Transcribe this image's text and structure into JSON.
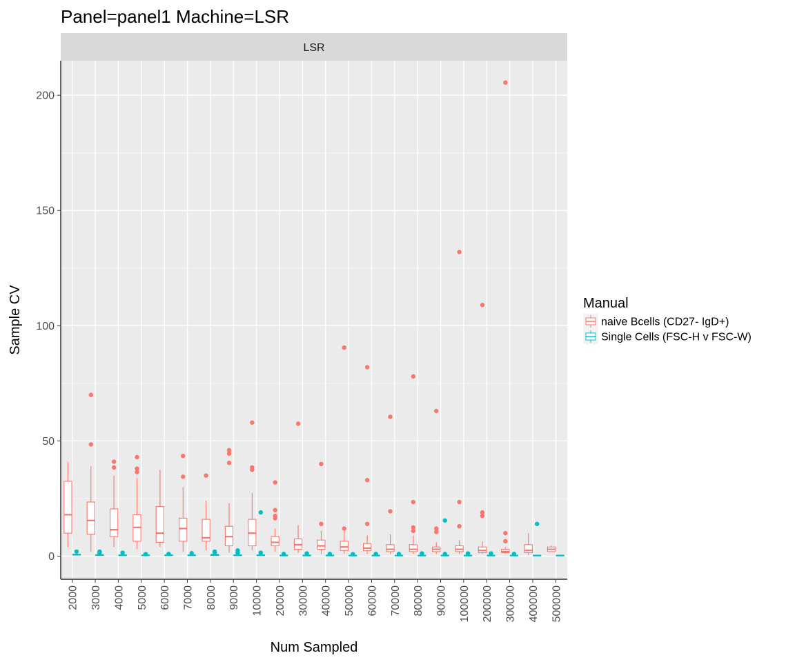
{
  "chart_data": {
    "type": "box",
    "title": "Panel=panel1 Machine=LSR",
    "facet_label": "LSR",
    "xlabel": "Num Sampled",
    "ylabel": "Sample CV",
    "ylim": [
      -10,
      215
    ],
    "yticks": [
      0,
      50,
      100,
      150,
      200
    ],
    "grid": true,
    "legend": {
      "title": "Manual",
      "position": "right"
    },
    "categories": [
      "2000",
      "3000",
      "4000",
      "5000",
      "6000",
      "7000",
      "8000",
      "9000",
      "10000",
      "20000",
      "30000",
      "40000",
      "50000",
      "60000",
      "70000",
      "80000",
      "90000",
      "100000",
      "200000",
      "300000",
      "400000",
      "500000"
    ],
    "series": [
      {
        "name": "naive Bcells (CD27- IgD+)",
        "color": "#F8766D",
        "boxes": [
          {
            "min": 4,
            "q1": 10,
            "median": 18,
            "q3": 32.5,
            "max": 41,
            "outliers": []
          },
          {
            "min": 2,
            "q1": 9.5,
            "median": 15.5,
            "q3": 23.5,
            "max": 39,
            "outliers": [
              48.5,
              70
            ]
          },
          {
            "min": 4,
            "q1": 8.5,
            "median": 11.5,
            "q3": 20.5,
            "max": 35,
            "outliers": [
              38.5,
              41
            ]
          },
          {
            "min": 3,
            "q1": 6.5,
            "median": 12.5,
            "q3": 18,
            "max": 34,
            "outliers": [
              36.5,
              38,
              43
            ]
          },
          {
            "min": 4,
            "q1": 6,
            "median": 10,
            "q3": 21.5,
            "max": 37.5,
            "outliers": []
          },
          {
            "min": 2,
            "q1": 6.5,
            "median": 12,
            "q3": 16.5,
            "max": 30,
            "outliers": [
              34.5,
              43.5
            ]
          },
          {
            "min": 2.5,
            "q1": 6.5,
            "median": 8,
            "q3": 16,
            "max": 24,
            "outliers": [
              35
            ]
          },
          {
            "min": 1.5,
            "q1": 4.5,
            "median": 8.5,
            "q3": 13,
            "max": 23,
            "outliers": [
              40.5,
              44.5,
              46
            ]
          },
          {
            "min": 2.5,
            "q1": 4.5,
            "median": 10,
            "q3": 16,
            "max": 27.5,
            "outliers": [
              37.5,
              38.5,
              58
            ]
          },
          {
            "min": 2,
            "q1": 4.5,
            "median": 6,
            "q3": 8.5,
            "max": 12,
            "outliers": [
              16.5,
              17.5,
              20,
              32
            ]
          },
          {
            "min": 1.5,
            "q1": 3,
            "median": 5,
            "q3": 7.5,
            "max": 13.5,
            "outliers": [
              57.5
            ]
          },
          {
            "min": 1,
            "q1": 3,
            "median": 4.5,
            "q3": 7,
            "max": 11,
            "outliers": [
              14,
              40
            ]
          },
          {
            "min": 1,
            "q1": 2.5,
            "median": 4,
            "q3": 6.5,
            "max": 11,
            "outliers": [
              12,
              90.5
            ]
          },
          {
            "min": 1,
            "q1": 2.5,
            "median": 3.5,
            "q3": 5.5,
            "max": 9,
            "outliers": [
              14,
              33,
              82
            ]
          },
          {
            "min": 1,
            "q1": 2,
            "median": 3,
            "q3": 5,
            "max": 9.5,
            "outliers": [
              19.5,
              60.5
            ]
          },
          {
            "min": 1,
            "q1": 2,
            "median": 3,
            "q3": 5,
            "max": 9,
            "outliers": [
              11,
              12.5,
              23.5,
              78
            ]
          },
          {
            "min": 1,
            "q1": 2,
            "median": 3,
            "q3": 4,
            "max": 6,
            "outliers": [
              10.5,
              12,
              63
            ]
          },
          {
            "min": 1,
            "q1": 2,
            "median": 3,
            "q3": 4.5,
            "max": 7,
            "outliers": [
              13,
              23.5,
              132
            ]
          },
          {
            "min": 1,
            "q1": 1.5,
            "median": 2.5,
            "q3": 4,
            "max": 6.5,
            "outliers": [
              17.5,
              19,
              109
            ]
          },
          {
            "min": 1,
            "q1": 1.5,
            "median": 2,
            "q3": 3,
            "max": 4,
            "outliers": [
              6.5,
              10,
              205.5
            ]
          },
          {
            "min": 0.5,
            "q1": 1.5,
            "median": 2.5,
            "q3": 5,
            "max": 10,
            "outliers": []
          },
          {
            "min": 2,
            "q1": 2,
            "median": 3,
            "q3": 4,
            "max": 4.5,
            "outliers": []
          }
        ]
      },
      {
        "name": "Single Cells (FSC-H v FSC-W)",
        "color": "#00BFC4",
        "boxes": [
          {
            "min": 0.3,
            "q1": 0.5,
            "median": 0.7,
            "q3": 0.9,
            "max": 1.2,
            "outliers": [
              2
            ]
          },
          {
            "min": 0.2,
            "q1": 0.4,
            "median": 0.5,
            "q3": 0.7,
            "max": 1,
            "outliers": [
              1.5,
              2
            ]
          },
          {
            "min": 0.2,
            "q1": 0.3,
            "median": 0.4,
            "q3": 0.6,
            "max": 0.9,
            "outliers": [
              1.5
            ]
          },
          {
            "min": 0.2,
            "q1": 0.3,
            "median": 0.4,
            "q3": 0.5,
            "max": 0.7,
            "outliers": [
              0.9
            ]
          },
          {
            "min": 0.2,
            "q1": 0.3,
            "median": 0.4,
            "q3": 0.6,
            "max": 0.8,
            "outliers": [
              1
            ]
          },
          {
            "min": 0.2,
            "q1": 0.3,
            "median": 0.4,
            "q3": 0.6,
            "max": 0.8,
            "outliers": [
              1.3
            ]
          },
          {
            "min": 0.2,
            "q1": 0.3,
            "median": 0.5,
            "q3": 0.8,
            "max": 1,
            "outliers": [
              1.5,
              2
            ]
          },
          {
            "min": 0.2,
            "q1": 0.3,
            "median": 0.4,
            "q3": 0.6,
            "max": 0.9,
            "outliers": [
              1.5,
              2.5
            ]
          },
          {
            "min": 0.2,
            "q1": 0.3,
            "median": 0.4,
            "q3": 0.6,
            "max": 0.8,
            "outliers": [
              1.5,
              19
            ]
          },
          {
            "min": 0.1,
            "q1": 0.2,
            "median": 0.3,
            "q3": 0.5,
            "max": 0.7,
            "outliers": [
              1
            ]
          },
          {
            "min": 0.1,
            "q1": 0.2,
            "median": 0.3,
            "q3": 0.5,
            "max": 0.7,
            "outliers": [
              1.2
            ]
          },
          {
            "min": 0.1,
            "q1": 0.2,
            "median": 0.3,
            "q3": 0.5,
            "max": 0.7,
            "outliers": [
              1
            ]
          },
          {
            "min": 0.1,
            "q1": 0.2,
            "median": 0.3,
            "q3": 0.4,
            "max": 0.6,
            "outliers": [
              0.9
            ]
          },
          {
            "min": 0.1,
            "q1": 0.2,
            "median": 0.3,
            "q3": 0.4,
            "max": 0.6,
            "outliers": [
              1
            ]
          },
          {
            "min": 0.1,
            "q1": 0.2,
            "median": 0.3,
            "q3": 0.4,
            "max": 0.6,
            "outliers": [
              1
            ]
          },
          {
            "min": 0.1,
            "q1": 0.2,
            "median": 0.3,
            "q3": 0.4,
            "max": 0.6,
            "outliers": [
              1.2
            ]
          },
          {
            "min": 0.1,
            "q1": 0.2,
            "median": 0.3,
            "q3": 0.4,
            "max": 0.6,
            "outliers": [
              1,
              15.5
            ]
          },
          {
            "min": 0.1,
            "q1": 0.2,
            "median": 0.3,
            "q3": 0.4,
            "max": 0.6,
            "outliers": [
              1.2
            ]
          },
          {
            "min": 0.1,
            "q1": 0.2,
            "median": 0.3,
            "q3": 0.4,
            "max": 0.6,
            "outliers": [
              1.2
            ]
          },
          {
            "min": 0.1,
            "q1": 0.2,
            "median": 0.3,
            "q3": 0.4,
            "max": 0.6,
            "outliers": [
              1
            ]
          },
          {
            "min": 0.1,
            "q1": 0.2,
            "median": 0.3,
            "q3": 0.4,
            "max": 0.6,
            "outliers": [
              14
            ]
          },
          {
            "min": 0.1,
            "q1": 0.2,
            "median": 0.3,
            "q3": 0.4,
            "max": 0.5,
            "outliers": []
          }
        ]
      }
    ]
  }
}
